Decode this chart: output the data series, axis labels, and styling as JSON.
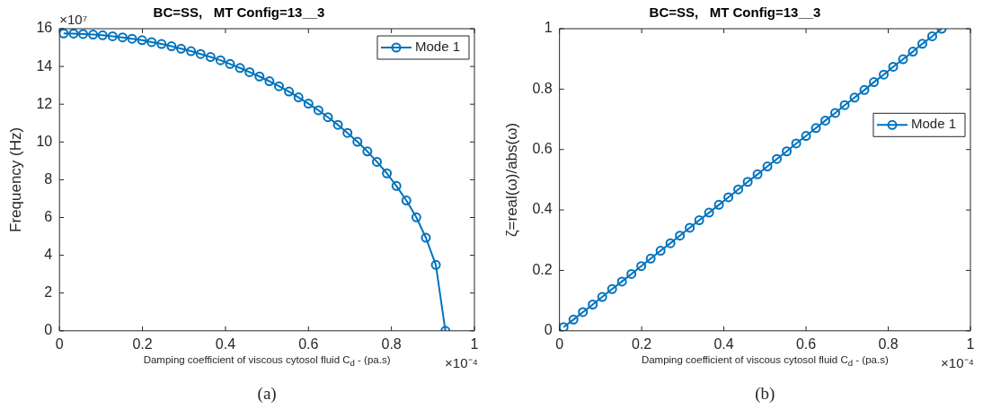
{
  "chart_data": [
    {
      "type": "line",
      "title": "BC=SS,   MT Config=13__3",
      "xlabel": "Damping coefficient of viscous cytosol fluid C$_{d}$ - (pa.s)",
      "ylabel": "Frequency (Hz)",
      "x": [
        0.01,
        0.034,
        0.057,
        0.081,
        0.104,
        0.128,
        0.152,
        0.175,
        0.199,
        0.222,
        0.246,
        0.27,
        0.293,
        0.317,
        0.34,
        0.364,
        0.388,
        0.411,
        0.435,
        0.458,
        0.482,
        0.506,
        0.529,
        0.553,
        0.576,
        0.6,
        0.624,
        0.647,
        0.671,
        0.694,
        0.718,
        0.742,
        0.765,
        0.789,
        0.812,
        0.836,
        0.86,
        0.883,
        0.907,
        0.93
      ],
      "series": [
        {
          "name": "Mode 1",
          "color": "#0072bd",
          "values": [
            15.75,
            15.74,
            15.72,
            15.69,
            15.65,
            15.6,
            15.54,
            15.47,
            15.39,
            15.29,
            15.19,
            15.07,
            14.94,
            14.81,
            14.66,
            14.5,
            14.33,
            14.13,
            13.92,
            13.7,
            13.47,
            13.22,
            12.95,
            12.67,
            12.36,
            12.03,
            11.68,
            11.31,
            10.91,
            10.48,
            10.01,
            9.5,
            8.95,
            8.34,
            7.67,
            6.9,
            6.01,
            4.93,
            3.49,
            0
          ]
        }
      ],
      "xlim": [
        0,
        1
      ],
      "xticks": [
        0,
        0.2,
        0.4,
        0.6,
        0.8,
        1
      ],
      "ylim": [
        0,
        16
      ],
      "yticks": [
        0,
        2,
        4,
        6,
        8,
        10,
        12,
        14,
        16
      ],
      "grid": false,
      "legend": "top right",
      "marker": "circle",
      "line_style": "solid",
      "annotations": [
        "×10⁻⁴",
        "×10⁷",
        "(a)"
      ]
    },
    {
      "type": "line",
      "title": "BC=SS,   MT Config=13__3",
      "xlabel": "Damping coefficient of viscous cytosol fluid C$_{d}$ - (pa.s)",
      "ylabel": "ζ=real(ω)/abs(ω)",
      "x": [
        0.01,
        0.034,
        0.057,
        0.081,
        0.104,
        0.128,
        0.152,
        0.175,
        0.199,
        0.222,
        0.246,
        0.27,
        0.293,
        0.317,
        0.34,
        0.364,
        0.388,
        0.411,
        0.435,
        0.458,
        0.482,
        0.506,
        0.529,
        0.553,
        0.576,
        0.6,
        0.624,
        0.647,
        0.671,
        0.694,
        0.718,
        0.742,
        0.765,
        0.789,
        0.812,
        0.836,
        0.86,
        0.883,
        0.907,
        0.93
      ],
      "series": [
        {
          "name": "Mode 1",
          "color": "#0072bd",
          "values": [
            0.012,
            0.037,
            0.062,
            0.087,
            0.112,
            0.138,
            0.163,
            0.188,
            0.214,
            0.239,
            0.265,
            0.29,
            0.315,
            0.341,
            0.366,
            0.391,
            0.417,
            0.442,
            0.468,
            0.493,
            0.518,
            0.544,
            0.569,
            0.594,
            0.62,
            0.645,
            0.671,
            0.696,
            0.721,
            0.747,
            0.772,
            0.797,
            0.823,
            0.848,
            0.874,
            0.899,
            0.924,
            0.95,
            0.975,
            1
          ]
        }
      ],
      "xlim": [
        0,
        1
      ],
      "xticks": [
        0,
        0.2,
        0.4,
        0.6,
        0.8,
        1
      ],
      "ylim": [
        0,
        1
      ],
      "yticks": [
        0,
        0.2,
        0.4,
        0.6,
        0.8,
        1
      ],
      "grid": false,
      "legend": "right",
      "marker": "circle",
      "line_style": "solid",
      "annotations": [
        "×10⁻⁴",
        "(b)"
      ]
    }
  ]
}
